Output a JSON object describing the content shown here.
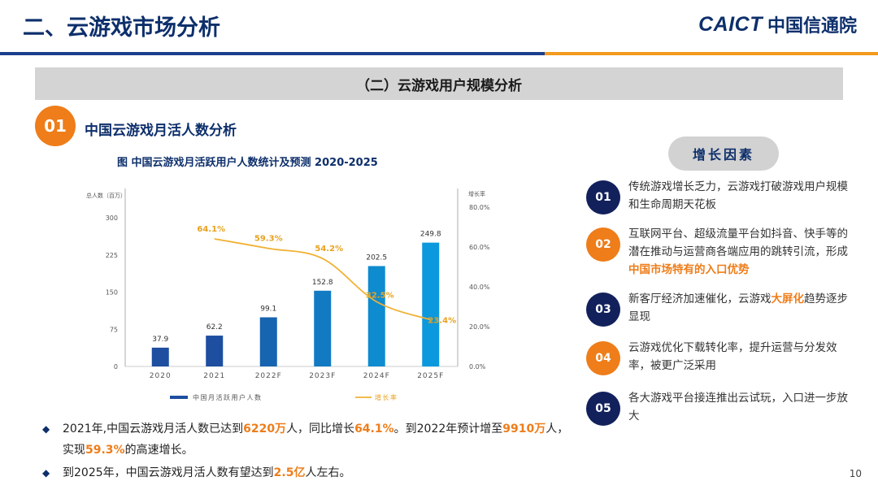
{
  "header": {
    "title": "二、云游戏市场分析",
    "logo_en": "CAICT",
    "logo_cn": "中国信通院"
  },
  "section_title": "（二）云游戏用户规模分析",
  "subsection": {
    "number": "01",
    "title": "中国云游戏月活人数分析"
  },
  "chart_caption": "图  中国云游戏月活跃用户人数统计及预测  2020-2025",
  "chart_data": {
    "type": "bar",
    "categories": [
      "2020",
      "2021",
      "2022F",
      "2023F",
      "2024F",
      "2025F"
    ],
    "series": [
      {
        "name": "中国月活跃用户人数",
        "type": "bar",
        "axis": "left",
        "values": [
          37.9,
          62.2,
          99.1,
          152.8,
          202.5,
          249.8
        ],
        "labels": [
          "37.9",
          "62.2",
          "99.1",
          "152.8",
          "202.5",
          "249.8"
        ]
      },
      {
        "name": "增长率",
        "type": "line",
        "axis": "right",
        "values": [
          null,
          64.1,
          59.3,
          54.2,
          32.5,
          23.4
        ],
        "labels": [
          "",
          "64.1%",
          "59.3%",
          "54.2%",
          "32.5%",
          "23.4%"
        ]
      }
    ],
    "ylabel": "总人数（百万）",
    "y2label": "增长率",
    "ylim": [
      0,
      300
    ],
    "yticks": [
      "0",
      "75",
      "150",
      "225",
      "300"
    ],
    "y2lim": [
      0,
      80
    ],
    "y2ticks": [
      "0.0%",
      "20.0%",
      "40.0%",
      "60.0%",
      "80.0%"
    ],
    "legend_position": "bottom",
    "grid": false,
    "colors": {
      "bars": [
        "#1d4ea0",
        "#1d4ea0",
        "#1764b0",
        "#127ac2",
        "#0f8bd0",
        "#0c98dc"
      ],
      "line": "#f0b133",
      "labels": "#e8a21e"
    }
  },
  "bullets": [
    {
      "parts": [
        {
          "t": "2021年,中国云游戏月活人数已达到"
        },
        {
          "t": "6220万",
          "hl": true
        },
        {
          "t": "人，同比增长"
        },
        {
          "t": "64.1%",
          "hl": true
        },
        {
          "t": "。到2022年预计增至"
        },
        {
          "t": "9910万",
          "hl": true
        },
        {
          "t": "人，实现"
        },
        {
          "t": "59.3%",
          "hl": true
        },
        {
          "t": "的高速增长。"
        }
      ]
    },
    {
      "parts": [
        {
          "t": "到2025年，中国云游戏月活人数有望达到"
        },
        {
          "t": "2.5亿",
          "hl": true
        },
        {
          "t": "人左右。"
        }
      ]
    }
  ],
  "growth_factors": {
    "title": "增长因素",
    "items": [
      {
        "num": "01",
        "color": "#12215c",
        "parts": [
          {
            "t": "传统游戏增长乏力，云游戏打破游戏用户规模和生命周期天花板"
          }
        ]
      },
      {
        "num": "02",
        "color": "#ee7d1a",
        "parts": [
          {
            "t": "互联网平台、超级流量平台如抖音、快手等的潜在推动与运营商各端应用的跳转引流，形成"
          },
          {
            "t": "中国市场特有的入口优势",
            "hl": true
          }
        ]
      },
      {
        "num": "03",
        "color": "#12215c",
        "parts": [
          {
            "t": "新客厅经济加速催化，云游戏"
          },
          {
            "t": "大屏化",
            "hl": true
          },
          {
            "t": "趋势逐步显现"
          }
        ]
      },
      {
        "num": "04",
        "color": "#ee7d1a",
        "parts": [
          {
            "t": "云游戏优化下载转化率，提升运营与分发效率，被更广泛采用"
          }
        ]
      },
      {
        "num": "05",
        "color": "#12215c",
        "parts": [
          {
            "t": "各大游戏平台接连推出云试玩，入口进一步放大"
          }
        ]
      }
    ]
  },
  "page_number": "10"
}
